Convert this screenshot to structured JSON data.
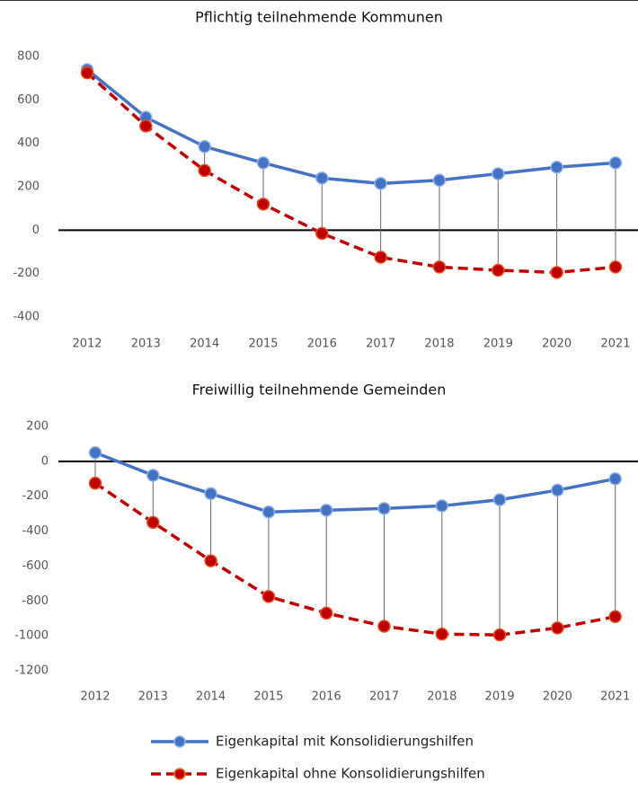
{
  "chart_data": [
    {
      "type": "line",
      "title": "Pflichtig teilnehmende Kommunen",
      "categories": [
        "2012",
        "2013",
        "2014",
        "2015",
        "2016",
        "2017",
        "2018",
        "2019",
        "2020",
        "2021"
      ],
      "series": [
        {
          "name": "Eigenkapital mit Konsolidierungshilfen",
          "color": "#4472c4",
          "values": [
            740,
            520,
            385,
            310,
            240,
            215,
            230,
            260,
            290,
            310
          ]
        },
        {
          "name": "Eigenkapital ohne Konsolidierungshilfen",
          "color": "#c00000",
          "values": [
            725,
            480,
            275,
            120,
            -15,
            -125,
            -170,
            -185,
            -195,
            -170
          ]
        }
      ],
      "ylim": [
        -400,
        800
      ],
      "yticks": [
        -400,
        -200,
        0,
        200,
        400,
        600,
        800
      ],
      "grid": false
    },
    {
      "type": "line",
      "title": "Freiwillig teilnehmende Gemeinden",
      "categories": [
        "2012",
        "2013",
        "2014",
        "2015",
        "2016",
        "2017",
        "2018",
        "2019",
        "2020",
        "2021"
      ],
      "series": [
        {
          "name": "Eigenkapital mit Konsolidierungshilfen",
          "color": "#4472c4",
          "values": [
            50,
            -80,
            -185,
            -290,
            -280,
            -270,
            -255,
            -220,
            -165,
            -100
          ]
        },
        {
          "name": "Eigenkapital ohne Konsolidierungshilfen",
          "color": "#c00000",
          "values": [
            -125,
            -350,
            -570,
            -775,
            -870,
            -945,
            -990,
            -995,
            -955,
            -890
          ]
        }
      ],
      "ylim": [
        -1200,
        200
      ],
      "yticks": [
        -1200,
        -1000,
        -800,
        -600,
        -400,
        -200,
        0,
        200
      ],
      "grid": false
    }
  ]
}
